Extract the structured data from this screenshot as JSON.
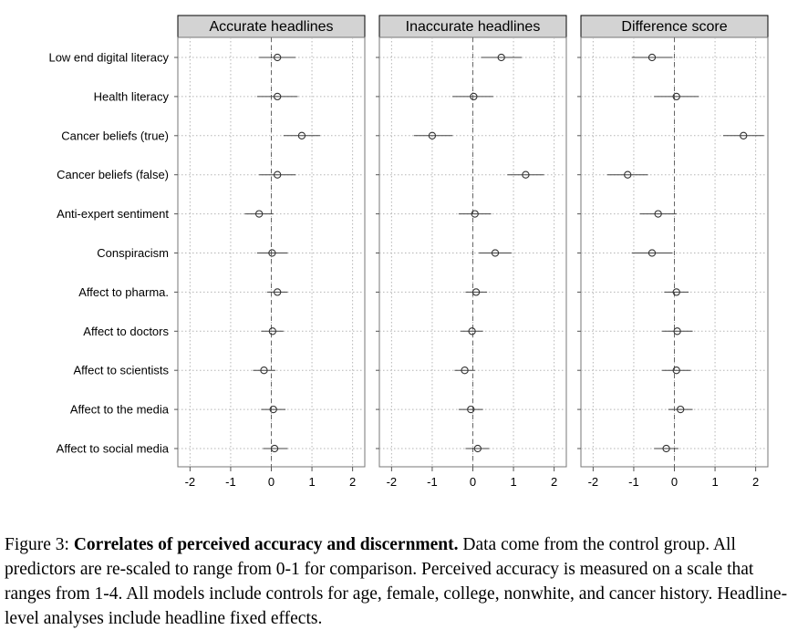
{
  "chart_data": {
    "type": "scatter",
    "subtype": "coefficient-plot",
    "xlim": [
      -2.3,
      2.3
    ],
    "xticks": [
      -2,
      -1,
      0,
      1,
      2
    ],
    "tick_labels": [
      "-2",
      "-1",
      "0",
      "1",
      "2"
    ],
    "grid": true,
    "reference_line": 0,
    "categories": [
      "Low end digital literacy",
      "Health literacy",
      "Cancer beliefs (true)",
      "Cancer beliefs (false)",
      "Anti-expert sentiment",
      "Conspiracism",
      "Affect to pharma.",
      "Affect to doctors",
      "Affect to scientists",
      "Affect to the media",
      "Affect to social media"
    ],
    "panels": [
      {
        "title": "Accurate headlines",
        "estimates": [
          0.15,
          0.15,
          0.75,
          0.15,
          -0.3,
          0.02,
          0.15,
          0.03,
          -0.18,
          0.05,
          0.08
        ],
        "ci_low": [
          -0.3,
          -0.35,
          0.3,
          -0.3,
          -0.65,
          -0.35,
          -0.1,
          -0.25,
          -0.45,
          -0.25,
          -0.2
        ],
        "ci_high": [
          0.6,
          0.65,
          1.2,
          0.6,
          0.05,
          0.4,
          0.4,
          0.3,
          0.1,
          0.35,
          0.4
        ]
      },
      {
        "title": "Inaccurate headlines",
        "estimates": [
          0.7,
          0.02,
          -1.0,
          1.3,
          0.05,
          0.55,
          0.08,
          -0.02,
          -0.2,
          -0.05,
          0.12
        ],
        "ci_low": [
          0.2,
          -0.5,
          -1.45,
          0.85,
          -0.35,
          0.15,
          -0.18,
          -0.3,
          -0.45,
          -0.35,
          -0.18
        ],
        "ci_high": [
          1.2,
          0.5,
          -0.5,
          1.75,
          0.45,
          0.95,
          0.35,
          0.25,
          0.05,
          0.25,
          0.4
        ]
      },
      {
        "title": "Difference score",
        "estimates": [
          -0.55,
          0.05,
          1.7,
          -1.15,
          -0.4,
          -0.55,
          0.05,
          0.07,
          0.05,
          0.15,
          -0.2
        ],
        "ci_low": [
          -1.05,
          -0.5,
          1.2,
          -1.65,
          -0.85,
          -1.05,
          -0.25,
          -0.3,
          -0.3,
          -0.15,
          -0.5
        ],
        "ci_high": [
          -0.05,
          0.6,
          2.2,
          -0.65,
          0.05,
          -0.05,
          0.35,
          0.45,
          0.4,
          0.45,
          0.1
        ]
      }
    ]
  },
  "caption": {
    "prefix": "Figure 3: ",
    "bold": "Correlates of perceived accuracy and discernment.",
    "text": " Data come from the control group. All predictors are re-scaled to range from 0-1 for comparison. Perceived accuracy is measured on a scale that ranges from 1-4. All models include controls for age, female, college, nonwhite, and cancer history. Headline-level analyses include headline fixed effects."
  }
}
